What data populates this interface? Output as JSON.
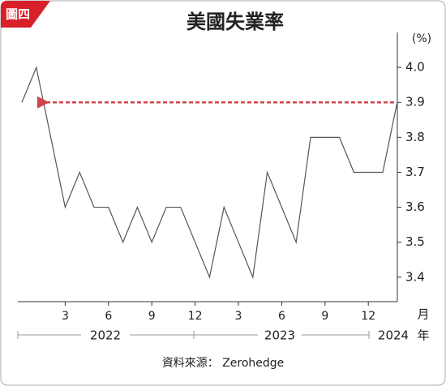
{
  "badge": "圖四",
  "chart_data": {
    "type": "line",
    "title": "美國失業率",
    "y_unit": "(%)",
    "categories": [
      null,
      null,
      null,
      "3",
      null,
      null,
      "6",
      null,
      null,
      "9",
      null,
      null,
      "12",
      null,
      null,
      "3",
      null,
      null,
      "6",
      null,
      null,
      "9",
      null,
      null,
      "12",
      null,
      null
    ],
    "x_unit": "月",
    "years": [
      "2022",
      "2023",
      "2024"
    ],
    "year_unit": "年",
    "series": [
      {
        "color": "#555555",
        "values": [
          3.9,
          4.0,
          3.8,
          3.6,
          3.7,
          3.6,
          3.6,
          3.5,
          3.6,
          3.5,
          3.6,
          3.6,
          3.5,
          3.4,
          3.6,
          3.5,
          3.4,
          3.7,
          3.6,
          3.5,
          3.8,
          3.8,
          3.8,
          3.7,
          3.7,
          3.7,
          3.9
        ]
      }
    ],
    "reference_line": {
      "value": 3.9,
      "color": "#d0454a"
    },
    "ylim": [
      3.33,
      4.1
    ],
    "yticks": [
      3.4,
      3.5,
      3.6,
      3.7,
      3.8,
      3.9,
      {
        "value": 4.0,
        "label": "4.0"
      }
    ],
    "source": "資料來源： Zerohedge"
  }
}
